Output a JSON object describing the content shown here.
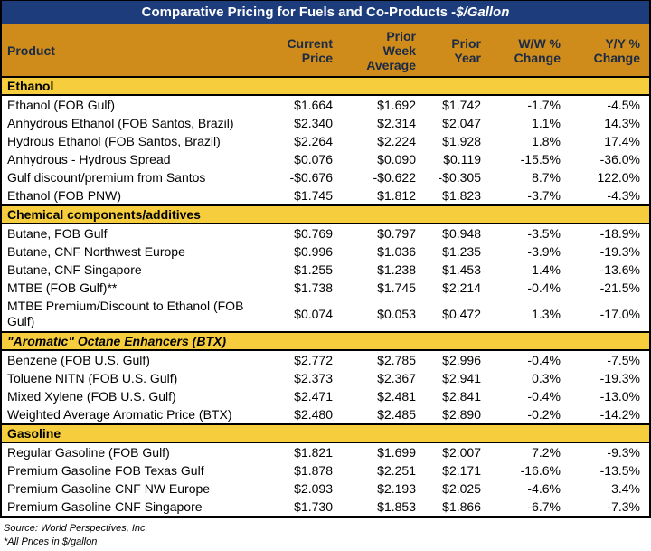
{
  "title": {
    "text": "Comparative Pricing for Fuels and Co-Products - ",
    "unit": "$/Gallon"
  },
  "columns": [
    {
      "id": "product",
      "lines": [
        "Product"
      ]
    },
    {
      "id": "current_price",
      "lines": [
        "Current",
        "Price"
      ]
    },
    {
      "id": "prior_week_avg",
      "lines": [
        "Prior",
        "Week",
        "Average"
      ]
    },
    {
      "id": "prior_year",
      "lines": [
        "Prior",
        "Year"
      ]
    },
    {
      "id": "ww_change",
      "lines": [
        "W/W %",
        "Change"
      ]
    },
    {
      "id": "yy_change",
      "lines": [
        "Y/Y %",
        "Change"
      ]
    }
  ],
  "sections": [
    {
      "name": "Ethanol",
      "italic": false,
      "rows": [
        {
          "product": "Ethanol (FOB Gulf)",
          "values": [
            "$1.664",
            "$1.692",
            "$1.742",
            "-1.7%",
            "-4.5%"
          ],
          "tall": false
        },
        {
          "product": "Anhydrous Ethanol (FOB Santos, Brazil)",
          "values": [
            "$2.340",
            "$2.314",
            "$2.047",
            "1.1%",
            "14.3%"
          ],
          "tall": false
        },
        {
          "product": "Hydrous Ethanol (FOB Santos, Brazil)",
          "values": [
            "$2.264",
            "$2.224",
            "$1.928",
            "1.8%",
            "17.4%"
          ],
          "tall": false
        },
        {
          "product": "Anhydrous - Hydrous Spread",
          "values": [
            "$0.076",
            "$0.090",
            "$0.119",
            "-15.5%",
            "-36.0%"
          ],
          "tall": false
        },
        {
          "product": "Gulf discount/premium from Santos",
          "values": [
            "-$0.676",
            "-$0.622",
            "-$0.305",
            "8.7%",
            "122.0%"
          ],
          "tall": false
        },
        {
          "product": "Ethanol (FOB PNW)",
          "values": [
            "$1.745",
            "$1.812",
            "$1.823",
            "-3.7%",
            "-4.3%"
          ],
          "tall": false
        }
      ]
    },
    {
      "name": "Chemical components/additives",
      "italic": false,
      "rows": [
        {
          "product": "Butane, FOB Gulf",
          "values": [
            "$0.769",
            "$0.797",
            "$0.948",
            "-3.5%",
            "-18.9%"
          ],
          "tall": false
        },
        {
          "product": "Butane, CNF Northwest Europe",
          "values": [
            "$0.996",
            "$1.036",
            "$1.235",
            "-3.9%",
            "-19.3%"
          ],
          "tall": false
        },
        {
          "product": "Butane, CNF Singapore",
          "values": [
            "$1.255",
            "$1.238",
            "$1.453",
            "1.4%",
            "-13.6%"
          ],
          "tall": false
        },
        {
          "product": "MTBE (FOB Gulf)**",
          "values": [
            "$1.738",
            "$1.745",
            "$2.214",
            "-0.4%",
            "-21.5%"
          ],
          "tall": false
        },
        {
          "product": "MTBE Premium/Discount to Ethanol (FOB Gulf)",
          "values": [
            "$0.074",
            "$0.053",
            "$0.472",
            "1.3%",
            "-17.0%"
          ],
          "tall": true
        }
      ]
    },
    {
      "name": "\"Aromatic\" Octane Enhancers (BTX)",
      "italic": true,
      "rows": [
        {
          "product": "Benzene (FOB U.S. Gulf)",
          "values": [
            "$2.772",
            "$2.785",
            "$2.996",
            "-0.4%",
            "-7.5%"
          ],
          "tall": false
        },
        {
          "product": "Toluene NITN (FOB U.S. Gulf)",
          "values": [
            "$2.373",
            "$2.367",
            "$2.941",
            "0.3%",
            "-19.3%"
          ],
          "tall": false
        },
        {
          "product": "Mixed Xylene (FOB U.S. Gulf)",
          "values": [
            "$2.471",
            "$2.481",
            "$2.841",
            "-0.4%",
            "-13.0%"
          ],
          "tall": false
        },
        {
          "product": "Weighted Average Aromatic Price (BTX)",
          "values": [
            "$2.480",
            "$2.485",
            "$2.890",
            "-0.2%",
            "-14.2%"
          ],
          "tall": false
        }
      ]
    },
    {
      "name": "Gasoline",
      "italic": false,
      "rows": [
        {
          "product": "Regular Gasoline (FOB Gulf)",
          "values": [
            "$1.821",
            "$1.699",
            "$2.007",
            "7.2%",
            "-9.3%"
          ],
          "tall": false
        },
        {
          "product": "Premium Gasoline FOB Texas Gulf",
          "values": [
            "$1.878",
            "$2.251",
            "$2.171",
            "-16.6%",
            "-13.5%"
          ],
          "tall": false
        },
        {
          "product": "Premium Gasoline CNF NW Europe",
          "values": [
            "$2.093",
            "$2.193",
            "$2.025",
            "-4.6%",
            "3.4%"
          ],
          "tall": false
        },
        {
          "product": "Premium Gasoline CNF Singapore",
          "values": [
            "$1.730",
            "$1.853",
            "$1.866",
            "-6.7%",
            "-7.3%"
          ],
          "tall": false
        }
      ]
    }
  ],
  "footer": {
    "source": "Source: World Perspectives, Inc.",
    "note": "*All Prices in $/gallon"
  },
  "colors": {
    "title_bg": "#1C3C7C",
    "title_text": "#FFFFFF",
    "header_bg": "#CF8C1A",
    "header_text": "#1B2A45",
    "band_bg": "#F5CD3D",
    "row_bg": "#FFFFFF",
    "body_text": "#000000",
    "border": "#000000"
  },
  "chart_data": {
    "type": "table",
    "title": "Comparative Pricing for Fuels and Co-Products - $/Gallon",
    "columns": [
      "Product",
      "Current Price",
      "Prior Week Average",
      "Prior Year",
      "W/W % Change",
      "Y/Y % Change"
    ],
    "units": {
      "prices": "$/gallon",
      "changes": "%"
    },
    "sections": [
      {
        "name": "Ethanol",
        "rows": [
          {
            "product": "Ethanol (FOB Gulf)",
            "current_price": 1.664,
            "prior_week_avg": 1.692,
            "prior_year": 1.742,
            "ww_change_pct": -1.7,
            "yy_change_pct": -4.5
          },
          {
            "product": "Anhydrous Ethanol (FOB Santos, Brazil)",
            "current_price": 2.34,
            "prior_week_avg": 2.314,
            "prior_year": 2.047,
            "ww_change_pct": 1.1,
            "yy_change_pct": 14.3
          },
          {
            "product": "Hydrous Ethanol (FOB Santos, Brazil)",
            "current_price": 2.264,
            "prior_week_avg": 2.224,
            "prior_year": 1.928,
            "ww_change_pct": 1.8,
            "yy_change_pct": 17.4
          },
          {
            "product": "Anhydrous - Hydrous Spread",
            "current_price": 0.076,
            "prior_week_avg": 0.09,
            "prior_year": 0.119,
            "ww_change_pct": -15.5,
            "yy_change_pct": -36.0
          },
          {
            "product": "Gulf discount/premium from Santos",
            "current_price": -0.676,
            "prior_week_avg": -0.622,
            "prior_year": -0.305,
            "ww_change_pct": 8.7,
            "yy_change_pct": 122.0
          },
          {
            "product": "Ethanol (FOB PNW)",
            "current_price": 1.745,
            "prior_week_avg": 1.812,
            "prior_year": 1.823,
            "ww_change_pct": -3.7,
            "yy_change_pct": -4.3
          }
        ]
      },
      {
        "name": "Chemical components/additives",
        "rows": [
          {
            "product": "Butane, FOB Gulf",
            "current_price": 0.769,
            "prior_week_avg": 0.797,
            "prior_year": 0.948,
            "ww_change_pct": -3.5,
            "yy_change_pct": -18.9
          },
          {
            "product": "Butane, CNF Northwest Europe",
            "current_price": 0.996,
            "prior_week_avg": 1.036,
            "prior_year": 1.235,
            "ww_change_pct": -3.9,
            "yy_change_pct": -19.3
          },
          {
            "product": "Butane, CNF Singapore",
            "current_price": 1.255,
            "prior_week_avg": 1.238,
            "prior_year": 1.453,
            "ww_change_pct": 1.4,
            "yy_change_pct": -13.6
          },
          {
            "product": "MTBE (FOB Gulf)**",
            "current_price": 1.738,
            "prior_week_avg": 1.745,
            "prior_year": 2.214,
            "ww_change_pct": -0.4,
            "yy_change_pct": -21.5
          },
          {
            "product": "MTBE Premium/Discount to Ethanol (FOB Gulf)",
            "current_price": 0.074,
            "prior_week_avg": 0.053,
            "prior_year": 0.472,
            "ww_change_pct": 1.3,
            "yy_change_pct": -17.0
          }
        ]
      },
      {
        "name": "\"Aromatic\" Octane Enhancers (BTX)",
        "rows": [
          {
            "product": "Benzene (FOB U.S. Gulf)",
            "current_price": 2.772,
            "prior_week_avg": 2.785,
            "prior_year": 2.996,
            "ww_change_pct": -0.4,
            "yy_change_pct": -7.5
          },
          {
            "product": "Toluene NITN (FOB U.S. Gulf)",
            "current_price": 2.373,
            "prior_week_avg": 2.367,
            "prior_year": 2.941,
            "ww_change_pct": 0.3,
            "yy_change_pct": -19.3
          },
          {
            "product": "Mixed Xylene (FOB U.S. Gulf)",
            "current_price": 2.471,
            "prior_week_avg": 2.481,
            "prior_year": 2.841,
            "ww_change_pct": -0.4,
            "yy_change_pct": -13.0
          },
          {
            "product": "Weighted Average Aromatic Price (BTX)",
            "current_price": 2.48,
            "prior_week_avg": 2.485,
            "prior_year": 2.89,
            "ww_change_pct": -0.2,
            "yy_change_pct": -14.2
          }
        ]
      },
      {
        "name": "Gasoline",
        "rows": [
          {
            "product": "Regular Gasoline (FOB Gulf)",
            "current_price": 1.821,
            "prior_week_avg": 1.699,
            "prior_year": 2.007,
            "ww_change_pct": 7.2,
            "yy_change_pct": -9.3
          },
          {
            "product": "Premium Gasoline FOB Texas Gulf",
            "current_price": 1.878,
            "prior_week_avg": 2.251,
            "prior_year": 2.171,
            "ww_change_pct": -16.6,
            "yy_change_pct": -13.5
          },
          {
            "product": "Premium Gasoline CNF NW Europe",
            "current_price": 2.093,
            "prior_week_avg": 2.193,
            "prior_year": 2.025,
            "ww_change_pct": -4.6,
            "yy_change_pct": 3.4
          },
          {
            "product": "Premium Gasoline CNF Singapore",
            "current_price": 1.73,
            "prior_week_avg": 1.853,
            "prior_year": 1.866,
            "ww_change_pct": -6.7,
            "yy_change_pct": -7.3
          }
        ]
      }
    ],
    "notes": [
      "Source: World Perspectives, Inc.",
      "*All Prices in $/gallon"
    ]
  }
}
